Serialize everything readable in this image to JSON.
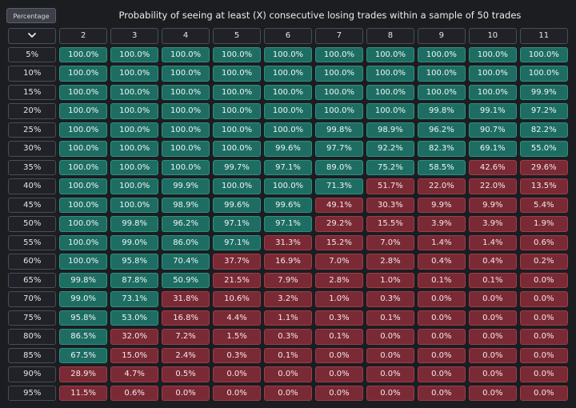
{
  "header": {
    "percentage_button": "Percentage",
    "title": "Probability of seeing at least (X) consecutive losing trades within a sample of 50 trades"
  },
  "table": {
    "corner_icon": "chevron-down-icon",
    "columns": [
      "2",
      "3",
      "4",
      "5",
      "6",
      "7",
      "8",
      "9",
      "10",
      "11"
    ],
    "rows": [
      {
        "label": "5%",
        "values": [
          "100.0%",
          "100.0%",
          "100.0%",
          "100.0%",
          "100.0%",
          "100.0%",
          "100.0%",
          "100.0%",
          "100.0%",
          "100.0%"
        ]
      },
      {
        "label": "10%",
        "values": [
          "100.0%",
          "100.0%",
          "100.0%",
          "100.0%",
          "100.0%",
          "100.0%",
          "100.0%",
          "100.0%",
          "100.0%",
          "100.0%"
        ]
      },
      {
        "label": "15%",
        "values": [
          "100.0%",
          "100.0%",
          "100.0%",
          "100.0%",
          "100.0%",
          "100.0%",
          "100.0%",
          "100.0%",
          "100.0%",
          "99.9%"
        ]
      },
      {
        "label": "20%",
        "values": [
          "100.0%",
          "100.0%",
          "100.0%",
          "100.0%",
          "100.0%",
          "100.0%",
          "100.0%",
          "99.8%",
          "99.1%",
          "97.2%"
        ]
      },
      {
        "label": "25%",
        "values": [
          "100.0%",
          "100.0%",
          "100.0%",
          "100.0%",
          "100.0%",
          "99.8%",
          "98.9%",
          "96.2%",
          "90.7%",
          "82.2%"
        ]
      },
      {
        "label": "30%",
        "values": [
          "100.0%",
          "100.0%",
          "100.0%",
          "100.0%",
          "99.6%",
          "97.7%",
          "92.2%",
          "82.3%",
          "69.1%",
          "55.0%"
        ]
      },
      {
        "label": "35%",
        "values": [
          "100.0%",
          "100.0%",
          "100.0%",
          "99.7%",
          "97.1%",
          "89.0%",
          "75.2%",
          "58.5%",
          "42.6%",
          "29.6%"
        ]
      },
      {
        "label": "40%",
        "values": [
          "100.0%",
          "100.0%",
          "99.9%",
          "100.0%",
          "100.0%",
          "71.3%",
          "51.7%",
          "22.0%",
          "22.0%",
          "13.5%"
        ]
      },
      {
        "label": "45%",
        "values": [
          "100.0%",
          "100.0%",
          "98.9%",
          "99.6%",
          "99.6%",
          "49.1%",
          "30.3%",
          "9.9%",
          "9.9%",
          "5.4%"
        ]
      },
      {
        "label": "50%",
        "values": [
          "100.0%",
          "99.8%",
          "96.2%",
          "97.1%",
          "97.1%",
          "29.2%",
          "15.5%",
          "3.9%",
          "3.9%",
          "1.9%"
        ]
      },
      {
        "label": "55%",
        "values": [
          "100.0%",
          "99.0%",
          "86.0%",
          "97.1%",
          "31.3%",
          "15.2%",
          "7.0%",
          "1.4%",
          "1.4%",
          "0.6%"
        ]
      },
      {
        "label": "60%",
        "values": [
          "100.0%",
          "95.8%",
          "70.4%",
          "37.7%",
          "16.9%",
          "7.0%",
          "2.8%",
          "0.4%",
          "0.4%",
          "0.2%"
        ]
      },
      {
        "label": "65%",
        "values": [
          "99.8%",
          "87.8%",
          "50.9%",
          "21.5%",
          "7.9%",
          "2.8%",
          "1.0%",
          "0.1%",
          "0.1%",
          "0.0%"
        ]
      },
      {
        "label": "70%",
        "values": [
          "99.0%",
          "73.1%",
          "31.8%",
          "10.6%",
          "3.2%",
          "1.0%",
          "0.3%",
          "0.0%",
          "0.0%",
          "0.0%"
        ]
      },
      {
        "label": "75%",
        "values": [
          "95.8%",
          "53.0%",
          "16.8%",
          "4.4%",
          "1.1%",
          "0.3%",
          "0.1%",
          "0.0%",
          "0.0%",
          "0.0%"
        ]
      },
      {
        "label": "80%",
        "values": [
          "86.5%",
          "32.0%",
          "7.2%",
          "1.5%",
          "0.3%",
          "0.1%",
          "0.0%",
          "0.0%",
          "0.0%",
          "0.0%"
        ]
      },
      {
        "label": "85%",
        "values": [
          "67.5%",
          "15.0%",
          "2.4%",
          "0.3%",
          "0.1%",
          "0.0%",
          "0.0%",
          "0.0%",
          "0.0%",
          "0.0%"
        ]
      },
      {
        "label": "90%",
        "values": [
          "28.9%",
          "4.7%",
          "0.5%",
          "0.0%",
          "0.0%",
          "0.0%",
          "0.0%",
          "0.0%",
          "0.0%",
          "0.0%"
        ]
      },
      {
        "label": "95%",
        "values": [
          "11.5%",
          "0.6%",
          "0.0%",
          "0.0%",
          "0.0%",
          "0.0%",
          "0.0%",
          "0.0%",
          "0.0%",
          "0.0%"
        ]
      }
    ],
    "teal_count_per_row": [
      10,
      10,
      10,
      10,
      10,
      10,
      8,
      6,
      5,
      5,
      4,
      3,
      3,
      2,
      2,
      1,
      1,
      0,
      0
    ],
    "colors": {
      "teal": "#1e6d63",
      "red": "#7a2a35",
      "header": "#202227",
      "background": "#1b1d21"
    }
  }
}
